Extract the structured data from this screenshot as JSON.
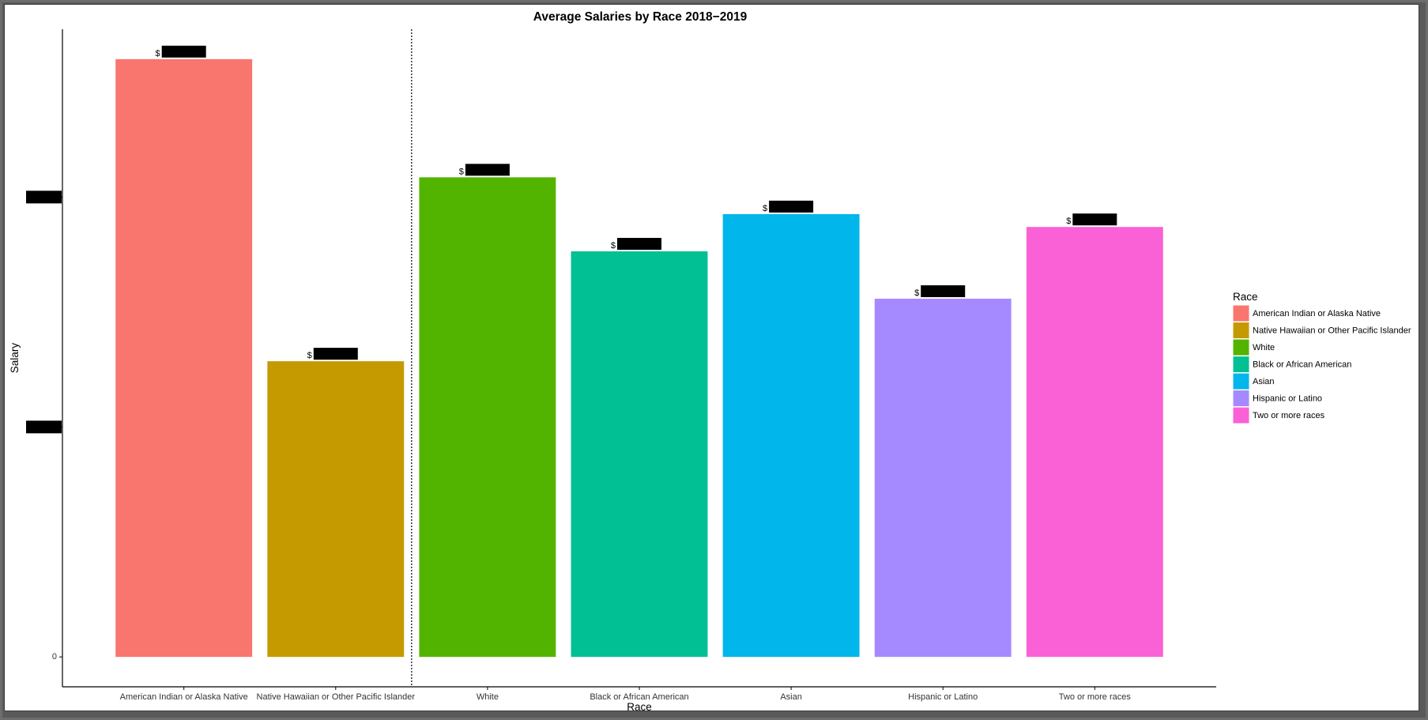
{
  "chart_data": {
    "type": "bar",
    "title": "Average Salaries by Race 2018−2019",
    "xlabel": "Race",
    "ylabel": "Salary",
    "categories": [
      "American Indian or Alaska Native",
      "Native Hawaiian or Other Pacific Islander",
      "White",
      "Black or African American",
      "Asian",
      "Hispanic or Latino",
      "Two or more races"
    ],
    "values": [
      130000,
      64300,
      104300,
      88200,
      96300,
      77900,
      93500
    ],
    "colors": [
      "#F8766D",
      "#C49A00",
      "#53B400",
      "#00C094",
      "#00B6EB",
      "#A58AFF",
      "#FB61D7"
    ],
    "data_labels_redacted": true,
    "data_label_prefix": "$",
    "ylim": [
      -6500,
      136500
    ],
    "yticks": [
      {
        "value": 0,
        "label": "0",
        "redacted": false
      },
      {
        "value": 50000,
        "label": "",
        "redacted": true
      },
      {
        "value": 100000,
        "label": "",
        "redacted": true
      }
    ],
    "grid": false,
    "vline_after_index": 1,
    "vline_style": "dotted",
    "legend": {
      "title": "Race",
      "placement": "right",
      "entries": [
        "American Indian or Alaska Native",
        "Native Hawaiian or Other Pacific Islander",
        "White",
        "Black or African American",
        "Asian",
        "Hispanic or Latino",
        "Two or more races"
      ]
    }
  }
}
